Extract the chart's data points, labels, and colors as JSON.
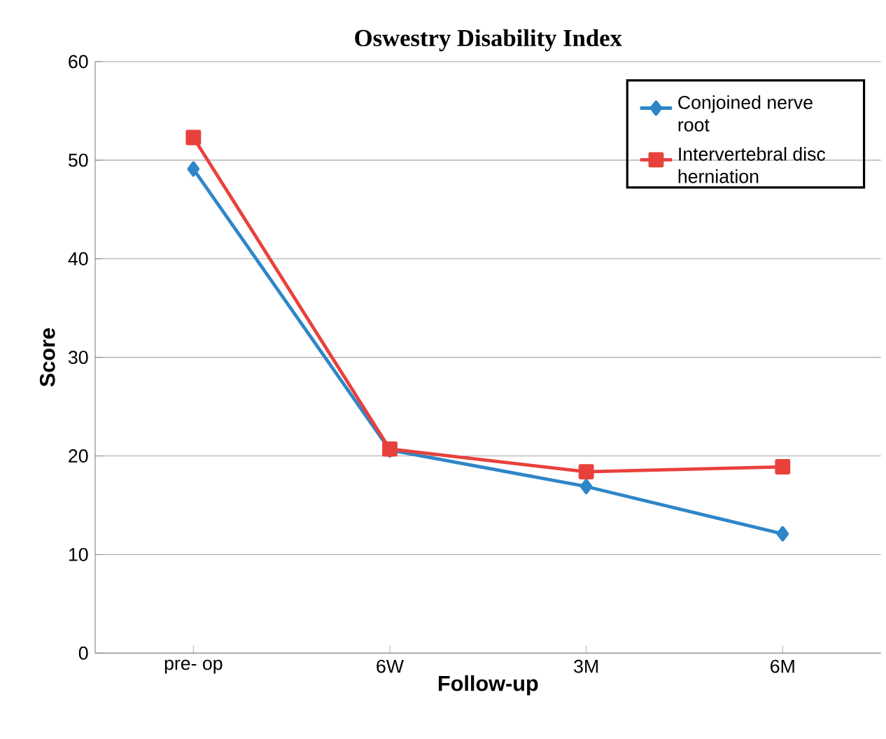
{
  "chart_data": {
    "type": "line",
    "title": "Oswestry Disability Index",
    "xlabel": "Follow-up",
    "ylabel": "Score",
    "categories": [
      "pre- op",
      "6W",
      "3M",
      "6M"
    ],
    "series": [
      {
        "name": "Conjoined nerve root",
        "color": "#2e86c8",
        "marker": "diamond",
        "values": [
          49.1,
          20.6,
          16.9,
          12.1
        ]
      },
      {
        "name": "Intervertebral disc herniation",
        "color": "#e8413c",
        "marker": "square",
        "values": [
          52.3,
          20.7,
          18.4,
          18.9
        ]
      }
    ],
    "ylim": [
      0,
      60
    ],
    "yticks": [
      0,
      10,
      20,
      30,
      40,
      50,
      60
    ],
    "grid": "y",
    "legend": "top right",
    "line_style": "solid"
  }
}
